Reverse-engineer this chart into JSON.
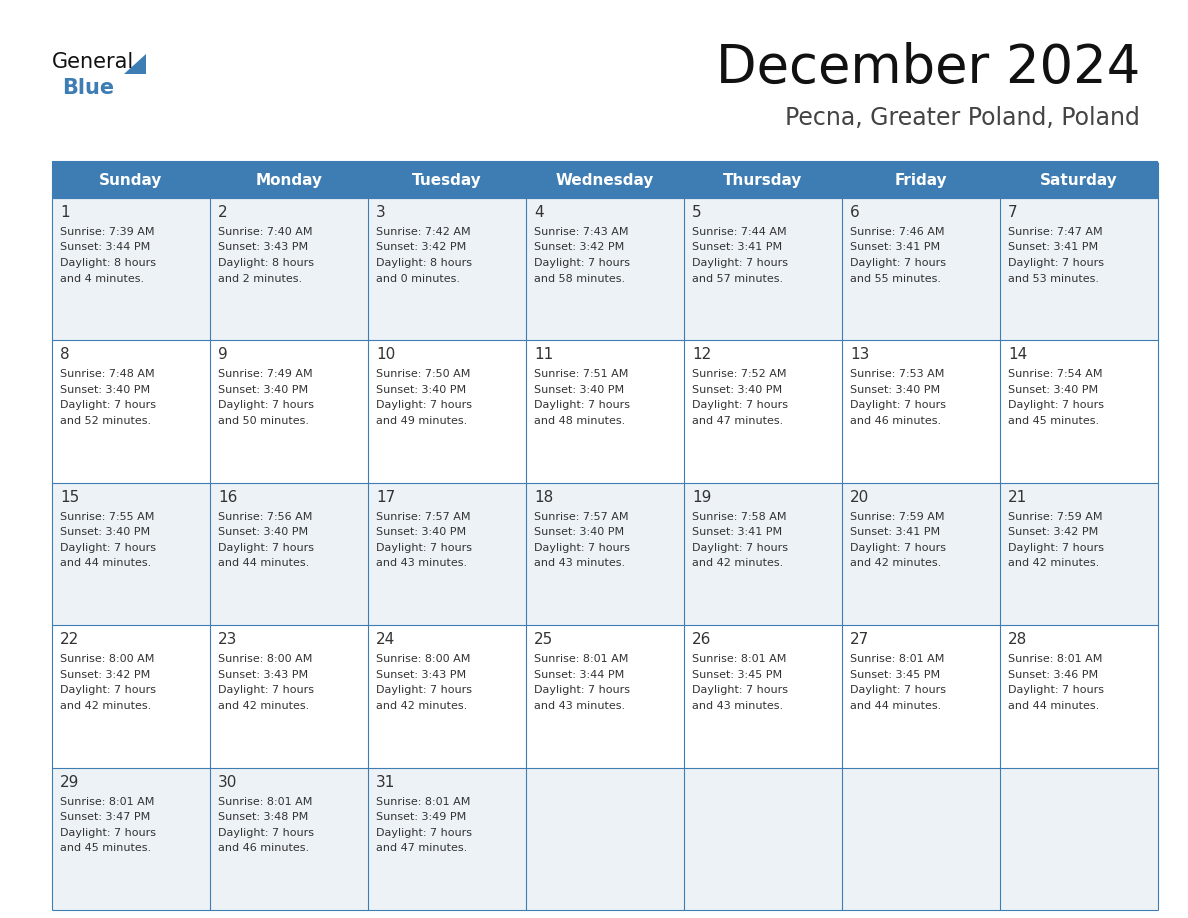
{
  "title": "December 2024",
  "subtitle": "Pecna, Greater Poland, Poland",
  "days_of_week": [
    "Sunday",
    "Monday",
    "Tuesday",
    "Wednesday",
    "Thursday",
    "Friday",
    "Saturday"
  ],
  "header_bg": "#3d7db3",
  "header_text": "#ffffff",
  "row_bg_odd": "#edf2f7",
  "row_bg_even": "#ffffff",
  "cell_text": "#333333",
  "border_color": "#3d7db3",
  "title_color": "#111111",
  "subtitle_color": "#444444",
  "logo_black": "#111111",
  "logo_blue": "#3d7db3",
  "triangle_blue": "#3d7db3",
  "calendar_data": [
    [
      {
        "day": "1",
        "sunrise": "7:39 AM",
        "sunset": "3:44 PM",
        "daylight_h": "8 hours",
        "daylight_m": "and 4 minutes."
      },
      {
        "day": "2",
        "sunrise": "7:40 AM",
        "sunset": "3:43 PM",
        "daylight_h": "8 hours",
        "daylight_m": "and 2 minutes."
      },
      {
        "day": "3",
        "sunrise": "7:42 AM",
        "sunset": "3:42 PM",
        "daylight_h": "8 hours",
        "daylight_m": "and 0 minutes."
      },
      {
        "day": "4",
        "sunrise": "7:43 AM",
        "sunset": "3:42 PM",
        "daylight_h": "7 hours",
        "daylight_m": "and 58 minutes."
      },
      {
        "day": "5",
        "sunrise": "7:44 AM",
        "sunset": "3:41 PM",
        "daylight_h": "7 hours",
        "daylight_m": "and 57 minutes."
      },
      {
        "day": "6",
        "sunrise": "7:46 AM",
        "sunset": "3:41 PM",
        "daylight_h": "7 hours",
        "daylight_m": "and 55 minutes."
      },
      {
        "day": "7",
        "sunrise": "7:47 AM",
        "sunset": "3:41 PM",
        "daylight_h": "7 hours",
        "daylight_m": "and 53 minutes."
      }
    ],
    [
      {
        "day": "8",
        "sunrise": "7:48 AM",
        "sunset": "3:40 PM",
        "daylight_h": "7 hours",
        "daylight_m": "and 52 minutes."
      },
      {
        "day": "9",
        "sunrise": "7:49 AM",
        "sunset": "3:40 PM",
        "daylight_h": "7 hours",
        "daylight_m": "and 50 minutes."
      },
      {
        "day": "10",
        "sunrise": "7:50 AM",
        "sunset": "3:40 PM",
        "daylight_h": "7 hours",
        "daylight_m": "and 49 minutes."
      },
      {
        "day": "11",
        "sunrise": "7:51 AM",
        "sunset": "3:40 PM",
        "daylight_h": "7 hours",
        "daylight_m": "and 48 minutes."
      },
      {
        "day": "12",
        "sunrise": "7:52 AM",
        "sunset": "3:40 PM",
        "daylight_h": "7 hours",
        "daylight_m": "and 47 minutes."
      },
      {
        "day": "13",
        "sunrise": "7:53 AM",
        "sunset": "3:40 PM",
        "daylight_h": "7 hours",
        "daylight_m": "and 46 minutes."
      },
      {
        "day": "14",
        "sunrise": "7:54 AM",
        "sunset": "3:40 PM",
        "daylight_h": "7 hours",
        "daylight_m": "and 45 minutes."
      }
    ],
    [
      {
        "day": "15",
        "sunrise": "7:55 AM",
        "sunset": "3:40 PM",
        "daylight_h": "7 hours",
        "daylight_m": "and 44 minutes."
      },
      {
        "day": "16",
        "sunrise": "7:56 AM",
        "sunset": "3:40 PM",
        "daylight_h": "7 hours",
        "daylight_m": "and 44 minutes."
      },
      {
        "day": "17",
        "sunrise": "7:57 AM",
        "sunset": "3:40 PM",
        "daylight_h": "7 hours",
        "daylight_m": "and 43 minutes."
      },
      {
        "day": "18",
        "sunrise": "7:57 AM",
        "sunset": "3:40 PM",
        "daylight_h": "7 hours",
        "daylight_m": "and 43 minutes."
      },
      {
        "day": "19",
        "sunrise": "7:58 AM",
        "sunset": "3:41 PM",
        "daylight_h": "7 hours",
        "daylight_m": "and 42 minutes."
      },
      {
        "day": "20",
        "sunrise": "7:59 AM",
        "sunset": "3:41 PM",
        "daylight_h": "7 hours",
        "daylight_m": "and 42 minutes."
      },
      {
        "day": "21",
        "sunrise": "7:59 AM",
        "sunset": "3:42 PM",
        "daylight_h": "7 hours",
        "daylight_m": "and 42 minutes."
      }
    ],
    [
      {
        "day": "22",
        "sunrise": "8:00 AM",
        "sunset": "3:42 PM",
        "daylight_h": "7 hours",
        "daylight_m": "and 42 minutes."
      },
      {
        "day": "23",
        "sunrise": "8:00 AM",
        "sunset": "3:43 PM",
        "daylight_h": "7 hours",
        "daylight_m": "and 42 minutes."
      },
      {
        "day": "24",
        "sunrise": "8:00 AM",
        "sunset": "3:43 PM",
        "daylight_h": "7 hours",
        "daylight_m": "and 42 minutes."
      },
      {
        "day": "25",
        "sunrise": "8:01 AM",
        "sunset": "3:44 PM",
        "daylight_h": "7 hours",
        "daylight_m": "and 43 minutes."
      },
      {
        "day": "26",
        "sunrise": "8:01 AM",
        "sunset": "3:45 PM",
        "daylight_h": "7 hours",
        "daylight_m": "and 43 minutes."
      },
      {
        "day": "27",
        "sunrise": "8:01 AM",
        "sunset": "3:45 PM",
        "daylight_h": "7 hours",
        "daylight_m": "and 44 minutes."
      },
      {
        "day": "28",
        "sunrise": "8:01 AM",
        "sunset": "3:46 PM",
        "daylight_h": "7 hours",
        "daylight_m": "and 44 minutes."
      }
    ],
    [
      {
        "day": "29",
        "sunrise": "8:01 AM",
        "sunset": "3:47 PM",
        "daylight_h": "7 hours",
        "daylight_m": "and 45 minutes."
      },
      {
        "day": "30",
        "sunrise": "8:01 AM",
        "sunset": "3:48 PM",
        "daylight_h": "7 hours",
        "daylight_m": "and 46 minutes."
      },
      {
        "day": "31",
        "sunrise": "8:01 AM",
        "sunset": "3:49 PM",
        "daylight_h": "7 hours",
        "daylight_m": "and 47 minutes."
      },
      null,
      null,
      null,
      null
    ]
  ]
}
